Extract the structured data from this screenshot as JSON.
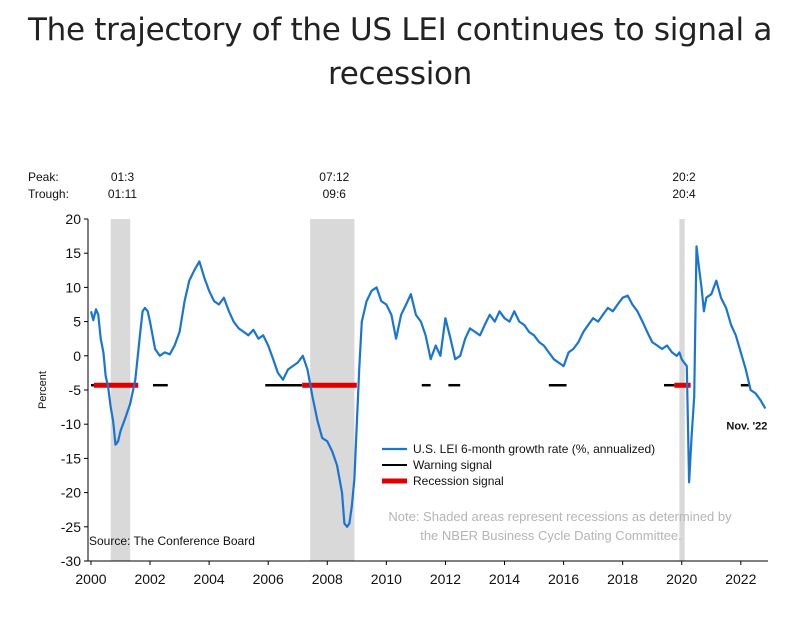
{
  "title": [
    "The trajectory of the US LEI continues to signal a",
    "recession"
  ],
  "colors": {
    "lei": "#1a75d2",
    "warning": "#000000",
    "recession_signal": "#e00000",
    "shade": "#d9d9d9",
    "note": "#b5b5b5"
  },
  "chart_data": {
    "type": "line",
    "title": "The trajectory of the US LEI continues to signal a recession",
    "ylabel": "Percent",
    "xlabel": "",
    "xlim": [
      1999.9,
      2022.92
    ],
    "ylim": [
      -30,
      20
    ],
    "yticks": [
      20,
      15,
      10,
      5,
      0,
      -5,
      -10,
      -15,
      -20,
      -25,
      -30
    ],
    "xticks": [
      2000,
      2002,
      2004,
      2006,
      2008,
      2010,
      2012,
      2014,
      2016,
      2018,
      2020,
      2022
    ],
    "peak_trough_labels": {
      "peak": "Peak:",
      "trough": "Trough:"
    },
    "recessions": [
      {
        "start": 2000.67,
        "end": 2001.33,
        "peak": "01:3",
        "trough": "01:11"
      },
      {
        "start": 2007.42,
        "end": 2008.92,
        "peak": "07:12",
        "trough": "09:6"
      },
      {
        "start": 2019.92,
        "end": 2020.1,
        "peak": "20:2",
        "trough": "20:4"
      }
    ],
    "signal_level": -4.3,
    "warning_signals": [
      [
        2000.0,
        2000.1
      ],
      [
        2002.1,
        2002.6
      ],
      [
        2005.9,
        2007.15
      ],
      [
        2011.2,
        2011.5
      ],
      [
        2012.1,
        2012.5
      ],
      [
        2015.5,
        2016.1
      ],
      [
        2019.4,
        2019.75
      ],
      [
        2022.0,
        2022.3
      ]
    ],
    "recession_signals": [
      [
        2000.1,
        2001.6
      ],
      [
        2007.15,
        2009.0
      ],
      [
        2019.75,
        2020.3
      ]
    ],
    "series": [
      {
        "name": "U.S. LEI 6-month growth rate (%, annualized)",
        "x": [
          2000.0,
          2000.08,
          2000.17,
          2000.25,
          2000.33,
          2000.42,
          2000.5,
          2000.58,
          2000.67,
          2000.75,
          2000.83,
          2000.92,
          2001.0,
          2001.17,
          2001.33,
          2001.5,
          2001.67,
          2001.75,
          2001.83,
          2001.92,
          2002.0,
          2002.17,
          2002.33,
          2002.5,
          2002.67,
          2002.83,
          2003.0,
          2003.17,
          2003.33,
          2003.5,
          2003.67,
          2003.83,
          2004.0,
          2004.17,
          2004.33,
          2004.5,
          2004.67,
          2004.83,
          2005.0,
          2005.17,
          2005.33,
          2005.5,
          2005.67,
          2005.83,
          2006.0,
          2006.17,
          2006.33,
          2006.5,
          2006.67,
          2006.83,
          2007.0,
          2007.17,
          2007.33,
          2007.5,
          2007.67,
          2007.83,
          2008.0,
          2008.17,
          2008.33,
          2008.5,
          2008.58,
          2008.67,
          2008.75,
          2008.83,
          2008.92,
          2009.0,
          2009.08,
          2009.17,
          2009.33,
          2009.5,
          2009.67,
          2009.83,
          2010.0,
          2010.17,
          2010.33,
          2010.5,
          2010.67,
          2010.83,
          2011.0,
          2011.17,
          2011.33,
          2011.5,
          2011.67,
          2011.83,
          2012.0,
          2012.17,
          2012.33,
          2012.5,
          2012.67,
          2012.83,
          2013.0,
          2013.17,
          2013.33,
          2013.5,
          2013.67,
          2013.83,
          2014.0,
          2014.17,
          2014.33,
          2014.5,
          2014.67,
          2014.83,
          2015.0,
          2015.17,
          2015.33,
          2015.5,
          2015.67,
          2015.83,
          2016.0,
          2016.17,
          2016.33,
          2016.5,
          2016.67,
          2016.83,
          2017.0,
          2017.17,
          2017.33,
          2017.5,
          2017.67,
          2017.83,
          2018.0,
          2018.17,
          2018.33,
          2018.5,
          2018.67,
          2018.83,
          2019.0,
          2019.17,
          2019.33,
          2019.5,
          2019.67,
          2019.83,
          2019.92,
          2020.0,
          2020.08,
          2020.17,
          2020.25,
          2020.33,
          2020.42,
          2020.5,
          2020.58,
          2020.67,
          2020.75,
          2020.83,
          2021.0,
          2021.17,
          2021.33,
          2021.5,
          2021.67,
          2021.83,
          2022.0,
          2022.17,
          2022.33,
          2022.5,
          2022.67,
          2022.83
        ],
        "values": [
          6.5,
          5.2,
          6.8,
          6.0,
          2.5,
          0.5,
          -3.0,
          -4.5,
          -7.5,
          -9.5,
          -13.0,
          -12.5,
          -11.0,
          -9.0,
          -7.0,
          -3.5,
          3.5,
          6.5,
          7.0,
          6.5,
          5.0,
          1.0,
          0.0,
          0.5,
          0.2,
          1.5,
          3.5,
          8.0,
          11.0,
          12.5,
          13.8,
          11.5,
          9.5,
          8.0,
          7.5,
          8.5,
          6.5,
          5.0,
          4.0,
          3.5,
          3.0,
          3.8,
          2.5,
          3.0,
          1.5,
          -0.5,
          -2.5,
          -3.5,
          -2.0,
          -1.5,
          -1.0,
          0.0,
          -2.0,
          -6.0,
          -9.5,
          -12.0,
          -12.5,
          -14.0,
          -16.0,
          -20.0,
          -24.5,
          -25.0,
          -24.5,
          -22.0,
          -18.0,
          -10.0,
          -2.0,
          5.0,
          8.0,
          9.5,
          10.0,
          8.0,
          7.5,
          6.0,
          2.5,
          6.0,
          7.5,
          9.0,
          6.0,
          5.0,
          3.0,
          -0.5,
          1.5,
          0.0,
          5.5,
          2.5,
          -0.5,
          0.0,
          2.5,
          4.0,
          3.5,
          3.0,
          4.5,
          6.0,
          5.0,
          6.5,
          5.5,
          5.0,
          6.5,
          5.0,
          4.5,
          3.5,
          3.0,
          2.0,
          1.5,
          0.5,
          -0.5,
          -1.0,
          -1.5,
          0.5,
          1.0,
          2.0,
          3.5,
          4.5,
          5.5,
          5.0,
          6.0,
          7.0,
          6.5,
          7.5,
          8.5,
          8.8,
          7.5,
          6.5,
          5.0,
          3.5,
          2.0,
          1.5,
          1.0,
          1.5,
          0.5,
          0.0,
          0.5,
          -0.5,
          -1.0,
          -1.5,
          -18.5,
          -12.0,
          -6.0,
          16.0,
          13.0,
          10.0,
          6.5,
          8.5,
          9.0,
          11.0,
          8.5,
          7.0,
          4.5,
          3.0,
          0.5,
          -2.0,
          -5.0,
          -5.5,
          -6.5,
          -7.7
        ]
      }
    ],
    "legend": [
      {
        "label": "U.S. LEI 6-month growth rate (%, annualized)",
        "style": "blue-line"
      },
      {
        "label": "Warning signal",
        "style": "black-line"
      },
      {
        "label": "Recession signal",
        "style": "red-thick-line"
      }
    ],
    "annotations": {
      "last_point": "Nov. '22",
      "note_lines": [
        "Note: Shaded areas represent recessions as determined by",
        "the NBER Business Cycle Dating Committee."
      ],
      "source": "Source: The Conference Board"
    }
  }
}
